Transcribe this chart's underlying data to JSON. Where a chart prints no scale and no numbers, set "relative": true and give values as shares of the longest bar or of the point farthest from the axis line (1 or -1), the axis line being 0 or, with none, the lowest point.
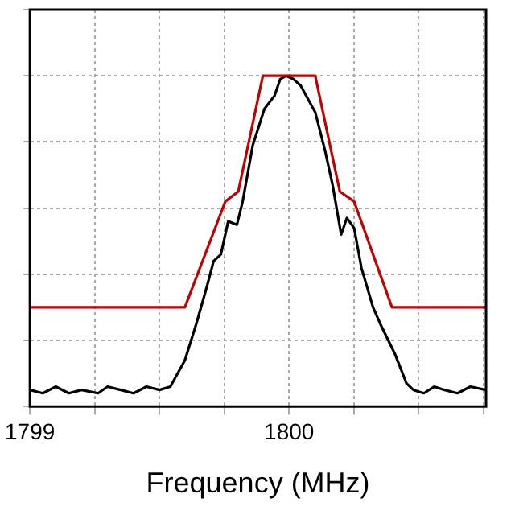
{
  "chart_data": {
    "type": "line",
    "xlabel": "Frequency (MHz)",
    "relative": true,
    "xlim": [
      1799,
      1800.76
    ],
    "xticks": [
      1799,
      {
        "value": 1799.25,
        "label": null
      },
      {
        "value": 1799.5,
        "label": null
      },
      {
        "value": 1799.75,
        "label": null
      },
      1800,
      {
        "value": 1800.25,
        "label": null
      },
      {
        "value": 1800.5,
        "label": null
      },
      {
        "value": 1800.75,
        "label": null
      }
    ],
    "tick_labels": "x",
    "grid": true,
    "legend": false,
    "marker": "none",
    "line_style": "solid",
    "series": [
      {
        "color": "#c00000",
        "x": [
          1799,
          1799.598,
          1799.754,
          1799.804,
          1799.899,
          1800.101,
          1800.196,
          1800.251,
          1800.397,
          1800.76
        ],
        "values": [
          0.3,
          0.3,
          0.62,
          0.65,
          1,
          1,
          0.65,
          0.62,
          0.3,
          0.3
        ]
      },
      {
        "color": "#000000",
        "x": [
          1799,
          1799.05,
          1799.1,
          1799.15,
          1799.2,
          1799.263,
          1799.3,
          1799.35,
          1799.4,
          1799.45,
          1799.5,
          1799.542,
          1799.598,
          1799.642,
          1799.682,
          1799.709,
          1799.737,
          1799.765,
          1799.799,
          1799.821,
          1799.86,
          1799.905,
          1799.944,
          1799.966,
          1799.989,
          1800.017,
          1800.045,
          1800.073,
          1800.101,
          1800.14,
          1800.168,
          1800.201,
          1800.223,
          1800.251,
          1800.279,
          1800.324,
          1800.352,
          1800.408,
          1800.453,
          1800.48,
          1800.52,
          1800.56,
          1800.6,
          1800.65,
          1800.7,
          1800.76
        ],
        "values": [
          0.05,
          0.04,
          0.06,
          0.04,
          0.05,
          0.04,
          0.06,
          0.05,
          0.04,
          0.06,
          0.05,
          0.06,
          0.14,
          0.25,
          0.36,
          0.44,
          0.46,
          0.56,
          0.55,
          0.62,
          0.79,
          0.9,
          0.94,
          0.99,
          1,
          0.99,
          0.97,
          0.93,
          0.89,
          0.77,
          0.67,
          0.52,
          0.57,
          0.54,
          0.42,
          0.3,
          0.25,
          0.16,
          0.07,
          0.05,
          0.04,
          0.06,
          0.05,
          0.04,
          0.06,
          0.05
        ]
      }
    ]
  }
}
